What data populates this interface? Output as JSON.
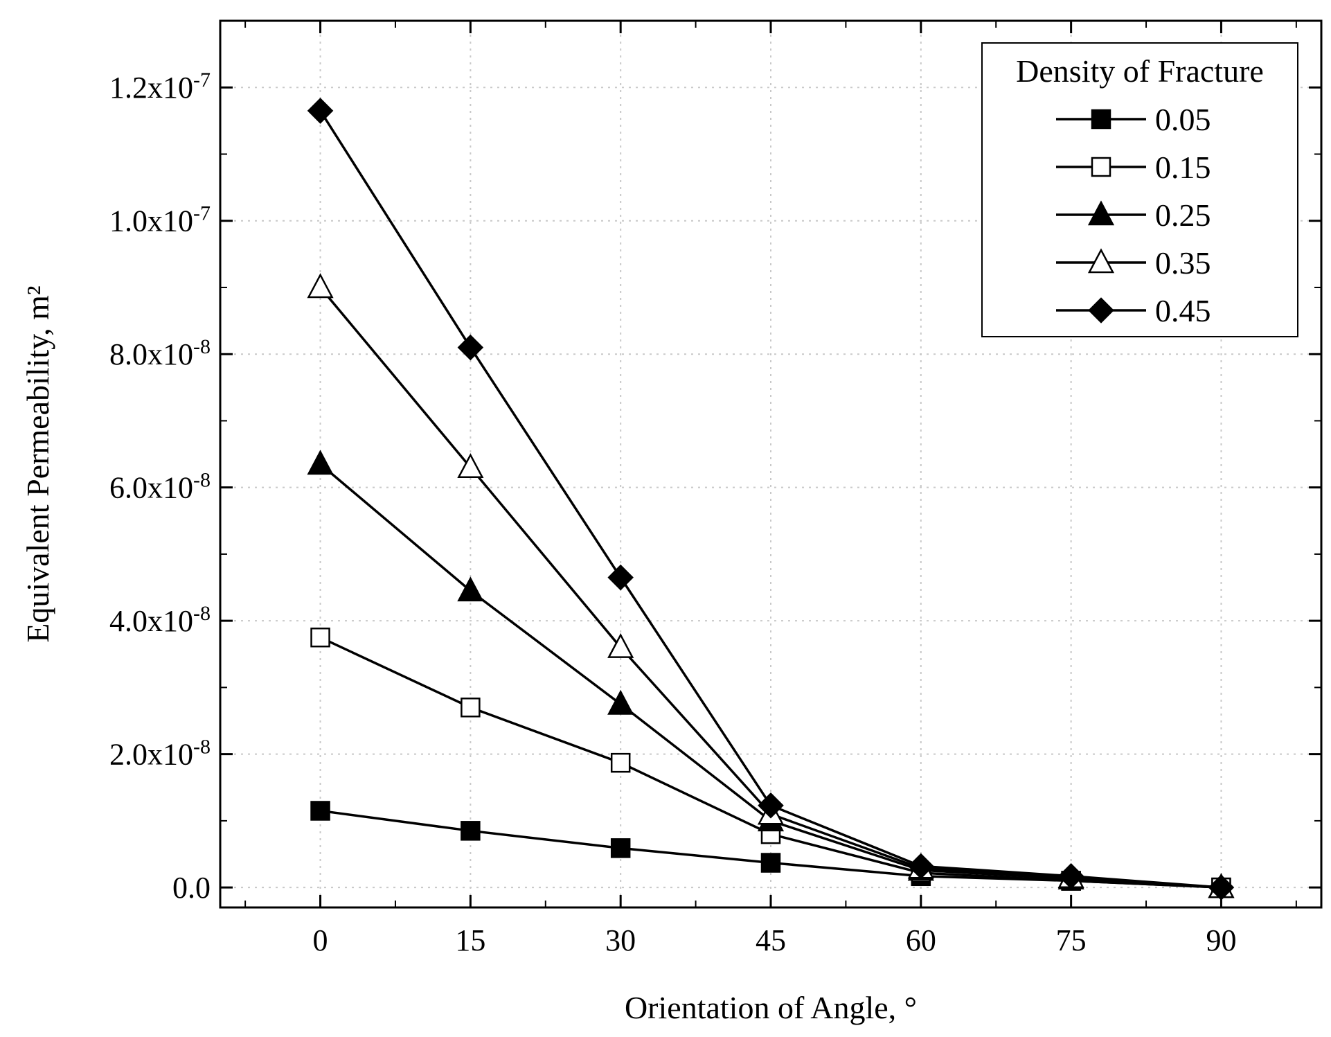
{
  "chart_data": {
    "type": "line",
    "title": "",
    "xlabel": "Orientation of Angle, °",
    "ylabel": "Equivalent Permeability, m²",
    "x": [
      0,
      15,
      30,
      45,
      60,
      75,
      90
    ],
    "x_ticks": [
      "0",
      "15",
      "30",
      "45",
      "60",
      "75",
      "90"
    ],
    "xlim": [
      -10,
      100
    ],
    "ylim": [
      -3e-09,
      1.3e-07
    ],
    "y_ticks": [
      {
        "value": 0,
        "mantissa": "0.0",
        "exponent": ""
      },
      {
        "value": 2e-08,
        "mantissa": "2.0x10",
        "exponent": "-8"
      },
      {
        "value": 4e-08,
        "mantissa": "4.0x10",
        "exponent": "-8"
      },
      {
        "value": 6e-08,
        "mantissa": "6.0x10",
        "exponent": "-8"
      },
      {
        "value": 8e-08,
        "mantissa": "8.0x10",
        "exponent": "-8"
      },
      {
        "value": 1e-07,
        "mantissa": "1.0x10",
        "exponent": "-7"
      },
      {
        "value": 1.2e-07,
        "mantissa": "1.2x10",
        "exponent": "-7"
      }
    ],
    "grid": true,
    "legend_title": "Density of Fracture",
    "legend_position": "top-right",
    "series": [
      {
        "name": "0.05",
        "marker": "square-filled",
        "values": [
          1.15e-08,
          8.5e-09,
          5.9e-09,
          3.7e-09,
          1.7e-09,
          1e-09,
          0
        ]
      },
      {
        "name": "0.15",
        "marker": "square-open",
        "values": [
          3.75e-08,
          2.7e-08,
          1.87e-08,
          8e-09,
          2.2e-09,
          1e-09,
          0
        ]
      },
      {
        "name": "0.25",
        "marker": "triangle-filled",
        "values": [
          6.35e-08,
          4.45e-08,
          2.75e-08,
          1e-08,
          2.6e-09,
          1.3e-09,
          0
        ]
      },
      {
        "name": "0.35",
        "marker": "triangle-open",
        "values": [
          9e-08,
          6.3e-08,
          3.6e-08,
          1.1e-08,
          2.9e-09,
          1.5e-09,
          0
        ]
      },
      {
        "name": "0.45",
        "marker": "diamond-filled",
        "values": [
          1.165e-07,
          8.1e-08,
          4.65e-08,
          1.23e-08,
          3.2e-09,
          1.7e-09,
          0
        ]
      }
    ]
  }
}
